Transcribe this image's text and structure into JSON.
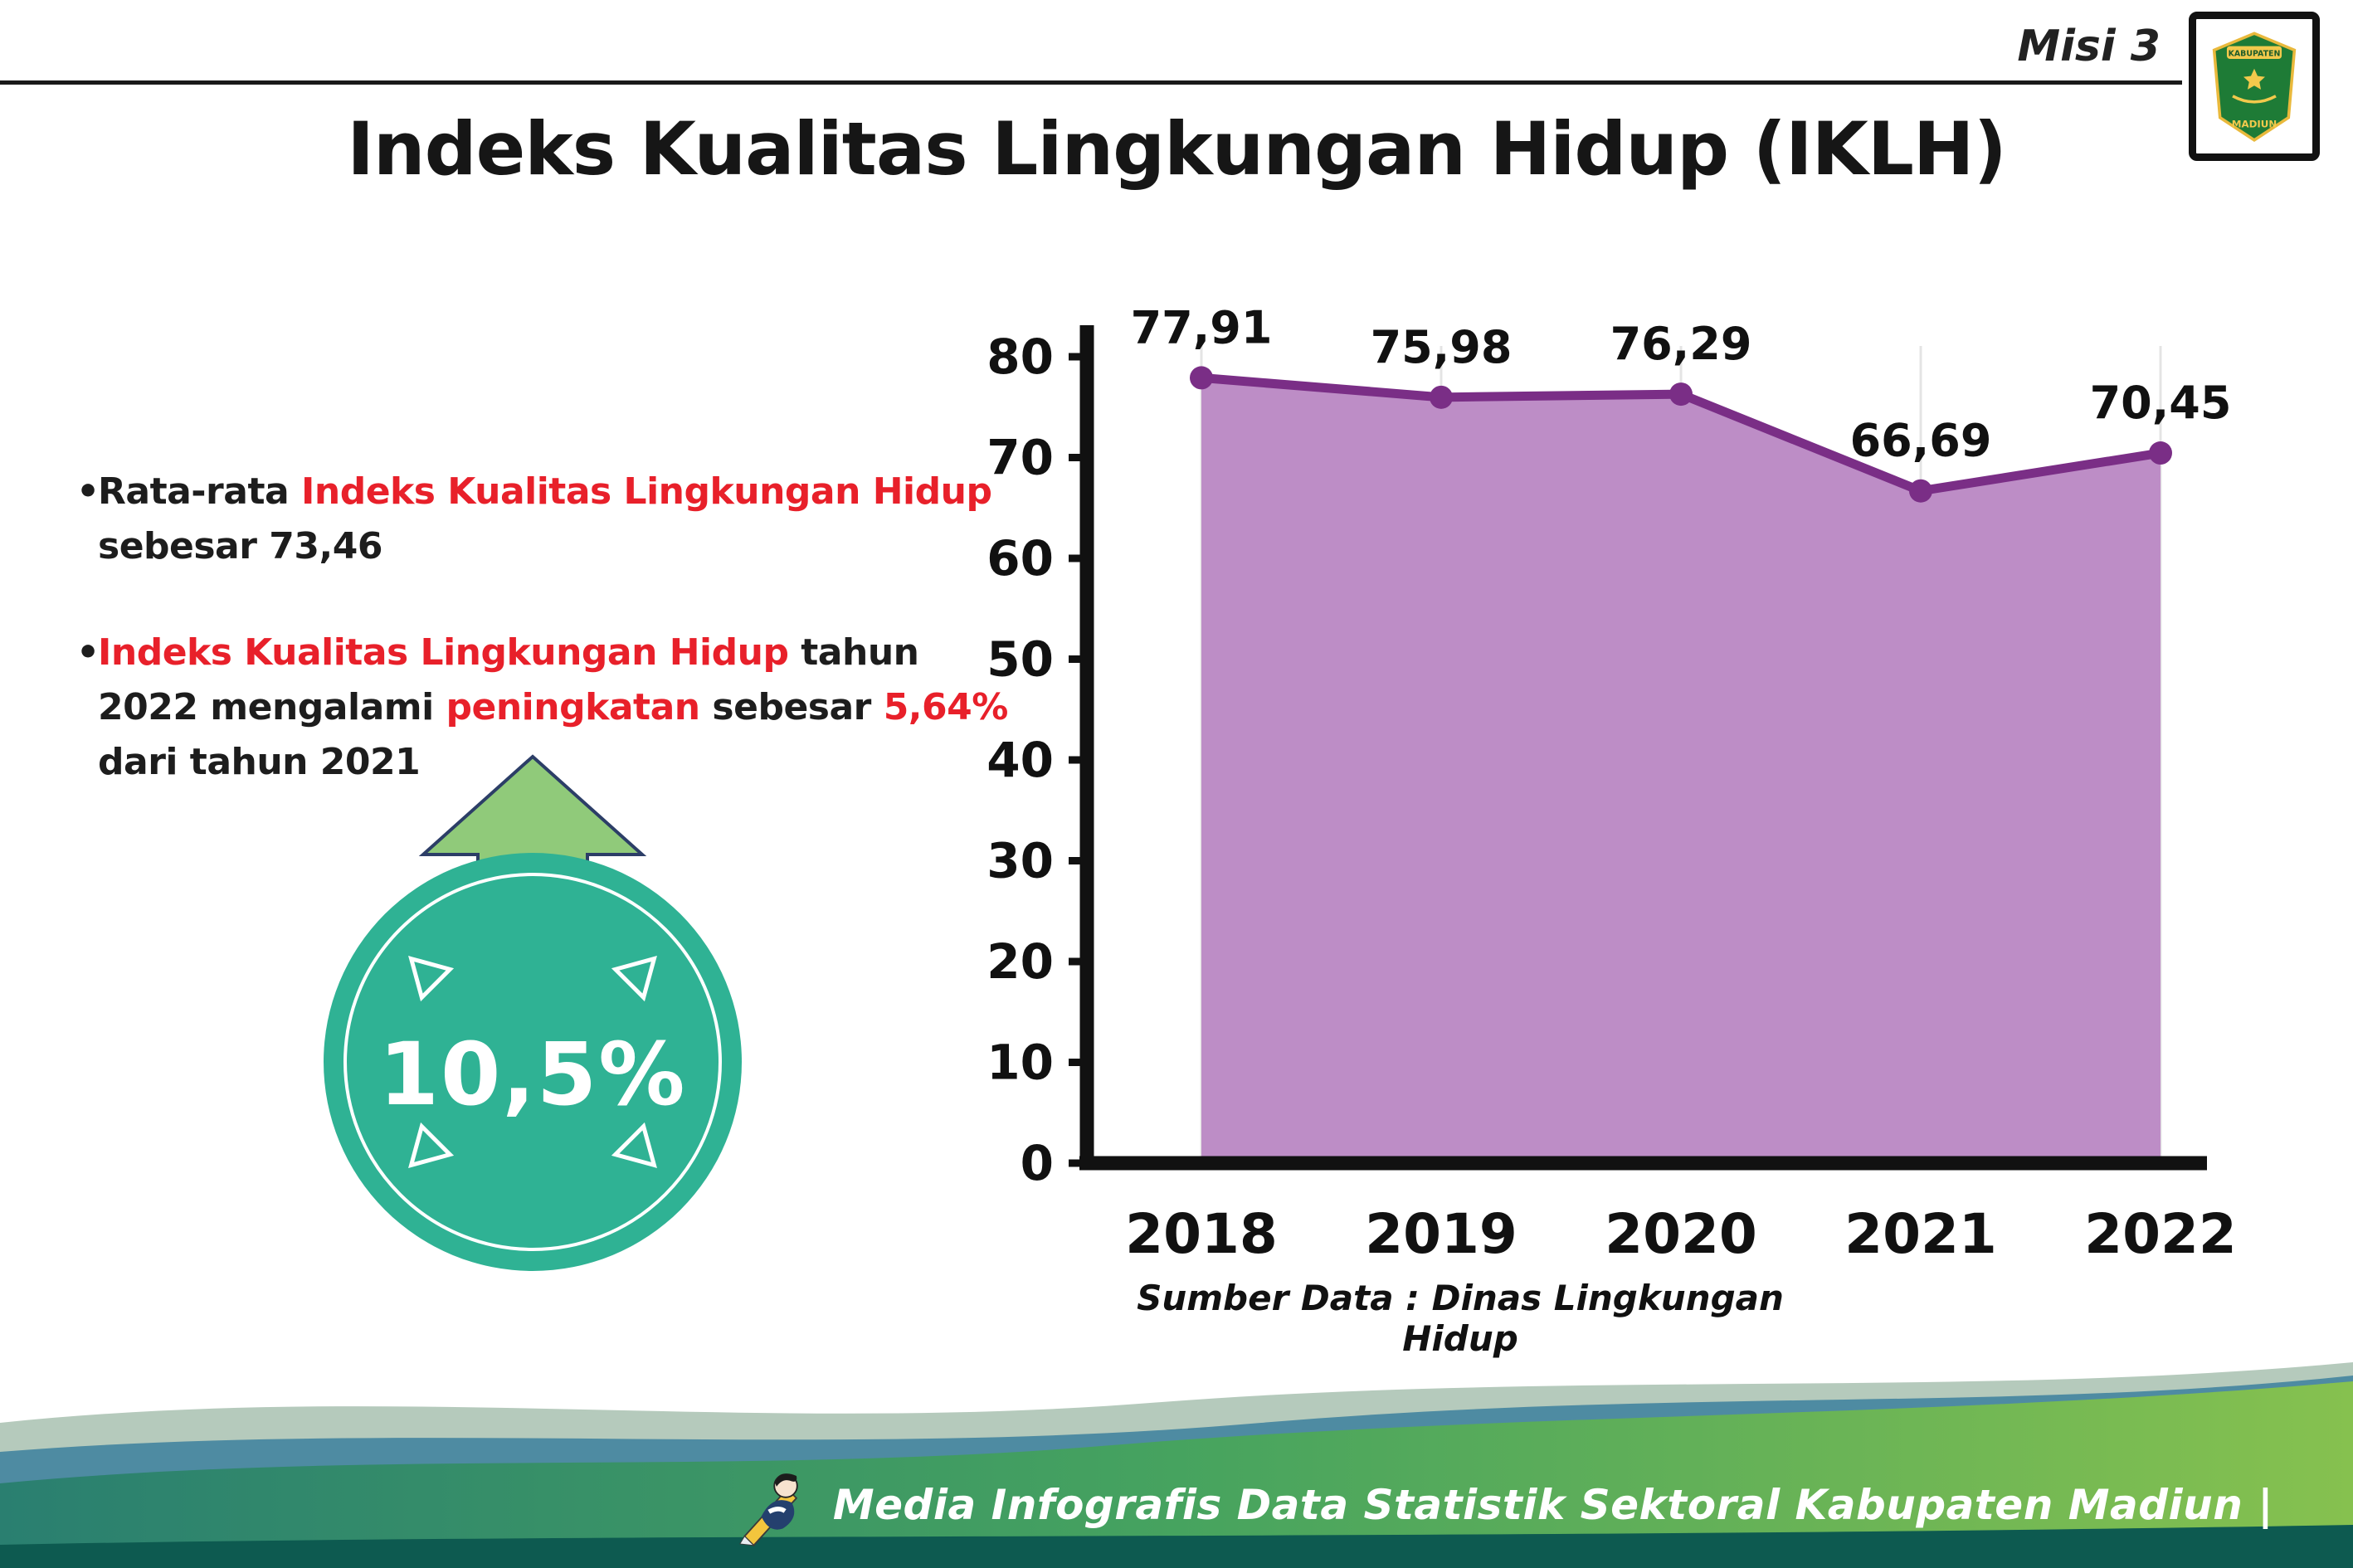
{
  "header": {
    "misi_label": "Misi 3",
    "title": "Indeks Kualitas Lingkungan Hidup (IKLH)",
    "logo": {
      "top_text": "KABUPATEN",
      "bottom_text": "MADIUN"
    }
  },
  "bullets": {
    "b1_pre": "Rata-rata ",
    "b1_red": "Indeks Kualitas Lingkungan Hidup",
    "b1_post": " sebesar 73,46",
    "b2_red1": "Indeks Kualitas Lingkungan Hidup",
    "b2_mid1": " tahun 2022 mengalami ",
    "b2_red2": "peningkatan",
    "b2_mid2": " sebesar ",
    "b2_red3": "5,64%",
    "b2_post": " dari tahun 2021"
  },
  "badge": {
    "value": "10,5%"
  },
  "chart_data": {
    "type": "area",
    "title": "Indeks Kualitas Lingkungan Hidup (IKLH)",
    "categories": [
      "2018",
      "2019",
      "2020",
      "2021",
      "2022"
    ],
    "values": [
      77.91,
      75.98,
      76.29,
      66.69,
      70.45
    ],
    "value_labels": [
      "77,91",
      "75,98",
      "76,29",
      "66,69",
      "70,45"
    ],
    "xlabel": "",
    "ylabel": "",
    "ylim": [
      0,
      80
    ],
    "yticks": [
      0,
      10,
      20,
      30,
      40,
      50,
      60,
      70,
      80
    ],
    "grid": "light vertical gridlines per category",
    "legend": "none",
    "area_color": "#bd8dc6",
    "line_color": "#7a2e86",
    "source": "Sumber Data : Dinas Lingkungan Hidup"
  },
  "footer": {
    "text": "Media Infografis Data Statistik Sektoral Kabupaten Madiun |"
  },
  "colors": {
    "highlight_red": "#e8202a",
    "badge_teal": "#2fb294",
    "arrow_green": "#90ca7a",
    "footer_green_left": "#2a7f70",
    "footer_green_right": "#86c14f"
  }
}
